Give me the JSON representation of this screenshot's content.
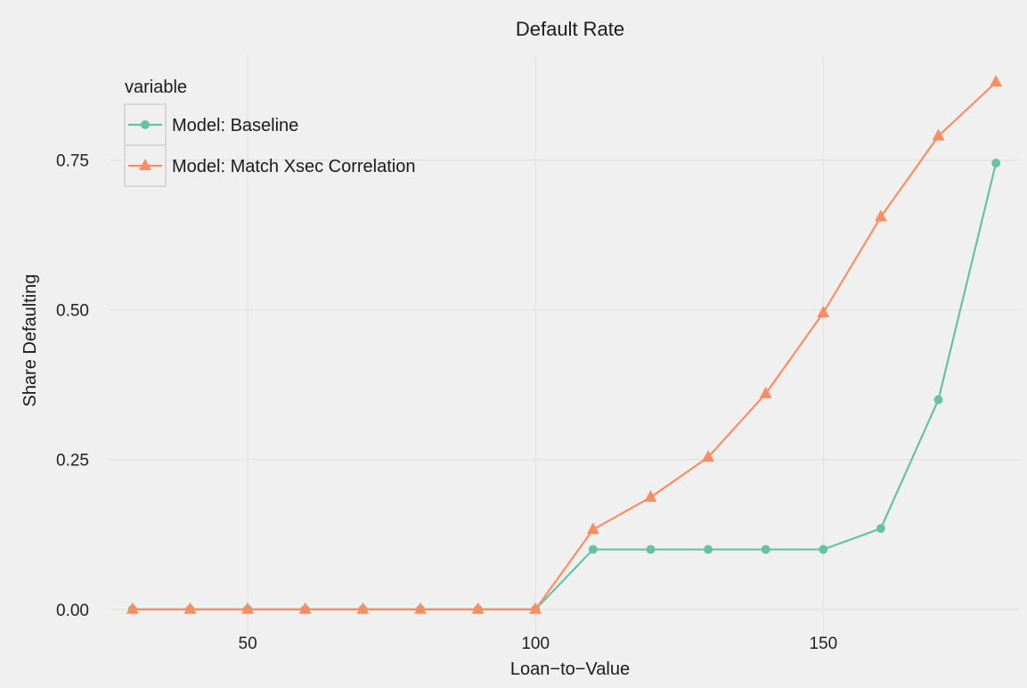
{
  "chart_data": {
    "type": "line",
    "title": "Default Rate",
    "xlabel": "Loan−to−Value",
    "ylabel": "Share Defaulting",
    "x": [
      30,
      40,
      50,
      60,
      70,
      80,
      90,
      100,
      110,
      120,
      130,
      140,
      150,
      160,
      170,
      180
    ],
    "xlim": [
      26,
      184
    ],
    "ylim": [
      -0.045,
      0.925
    ],
    "xticks": [
      50,
      100,
      150
    ],
    "yticks": [
      0.0,
      0.25,
      0.5,
      0.75
    ],
    "xtick_labels": [
      "50",
      "100",
      "150"
    ],
    "ytick_labels": [
      "0.00",
      "0.25",
      "0.50",
      "0.75"
    ],
    "grid": true,
    "legend": {
      "title": "variable",
      "position": "top-left"
    },
    "series": [
      {
        "name": "Model: Baseline",
        "color": "#66c2a5",
        "marker": "circle",
        "values": [
          0,
          0,
          0,
          0,
          0,
          0,
          0,
          0,
          0.1,
          0.1,
          0.1,
          0.1,
          0.1,
          0.135,
          0.35,
          0.745
        ]
      },
      {
        "name": "Model: Match Xsec Correlation",
        "color": "#fc8d62",
        "marker": "triangle",
        "values": [
          0,
          0,
          0,
          0,
          0,
          0,
          0,
          0,
          0.133,
          0.187,
          0.254,
          0.36,
          0.495,
          0.655,
          0.79,
          0.88
        ]
      }
    ]
  }
}
